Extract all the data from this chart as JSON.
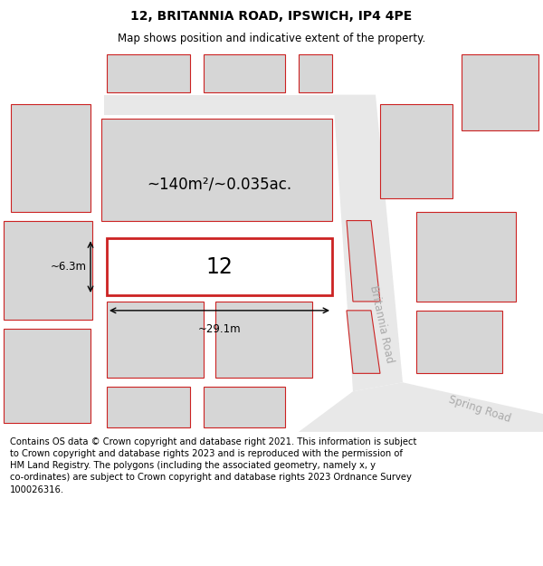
{
  "title": "12, BRITANNIA ROAD, IPSWICH, IP4 4PE",
  "subtitle": "Map shows position and indicative extent of the property.",
  "footer": "Contains OS data © Crown copyright and database right 2021. This information is subject\nto Crown copyright and database rights 2023 and is reproduced with the permission of\nHM Land Registry. The polygons (including the associated geometry, namely x, y\nco-ordinates) are subject to Crown copyright and database rights 2023 Ordnance Survey\n100026316.",
  "area_text": "~140m²/~0.035ac.",
  "width_text": "~29.1m",
  "height_text": "~6.3m",
  "property_label": "12",
  "map_bg": "#f2f2f2",
  "block_fill": "#d6d6d6",
  "block_edge": "#cc2222",
  "highlight_fill": "#ffffff",
  "highlight_edge": "#cc2222",
  "road_label_color": "#aaaaaa",
  "title_fontsize": 10,
  "subtitle_fontsize": 8.5,
  "footer_fontsize": 7.2,
  "area_fontsize": 12,
  "prop_label_fontsize": 17,
  "dim_fontsize": 8.5
}
